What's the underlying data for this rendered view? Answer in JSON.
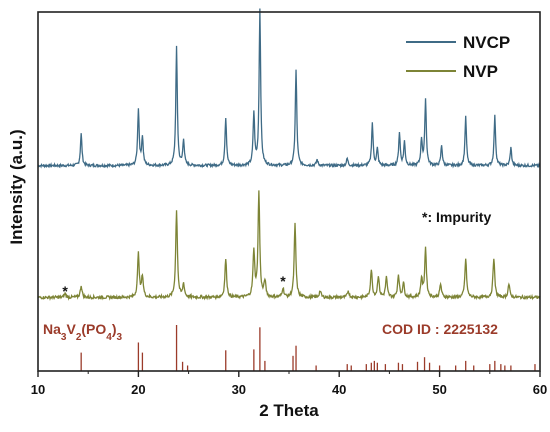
{
  "chart_data": {
    "type": "line",
    "title": "",
    "xlabel": "2 Theta",
    "ylabel": "Intensity (a.u.)",
    "xlim": [
      10,
      60
    ],
    "xticks": [
      10,
      20,
      30,
      40,
      50,
      60
    ],
    "grid": false,
    "legend_position": "top-right",
    "impurity_note": "*: Impurity",
    "impurity_marker": "*",
    "impurity_positions": [
      12.7,
      34.4
    ],
    "colors": {
      "NVCP": "#3f6b86",
      "NVP": "#7d8436",
      "reference": "#9b3b2a"
    },
    "series": [
      {
        "name": "NVCP",
        "color": "#3f6b86",
        "peaks": [
          {
            "x": 14.3,
            "y": 27
          },
          {
            "x": 20.0,
            "y": 48
          },
          {
            "x": 20.4,
            "y": 24
          },
          {
            "x": 23.8,
            "y": 100
          },
          {
            "x": 24.5,
            "y": 22
          },
          {
            "x": 28.7,
            "y": 41
          },
          {
            "x": 31.5,
            "y": 44
          },
          {
            "x": 32.1,
            "y": 132
          },
          {
            "x": 35.7,
            "y": 81
          },
          {
            "x": 37.8,
            "y": 5
          },
          {
            "x": 40.8,
            "y": 6
          },
          {
            "x": 43.3,
            "y": 36
          },
          {
            "x": 43.8,
            "y": 14
          },
          {
            "x": 46.0,
            "y": 28
          },
          {
            "x": 46.5,
            "y": 20
          },
          {
            "x": 48.2,
            "y": 22
          },
          {
            "x": 48.6,
            "y": 56
          },
          {
            "x": 50.2,
            "y": 17
          },
          {
            "x": 52.6,
            "y": 41
          },
          {
            "x": 55.5,
            "y": 42
          },
          {
            "x": 57.1,
            "y": 15
          }
        ]
      },
      {
        "name": "NVP",
        "color": "#7d8436",
        "peaks": [
          {
            "x": 12.7,
            "y": 3
          },
          {
            "x": 14.3,
            "y": 9
          },
          {
            "x": 20.0,
            "y": 33
          },
          {
            "x": 20.4,
            "y": 16
          },
          {
            "x": 23.8,
            "y": 66
          },
          {
            "x": 24.5,
            "y": 10
          },
          {
            "x": 28.7,
            "y": 29
          },
          {
            "x": 31.5,
            "y": 35
          },
          {
            "x": 32.0,
            "y": 79
          },
          {
            "x": 32.6,
            "y": 12
          },
          {
            "x": 34.4,
            "y": 7
          },
          {
            "x": 35.6,
            "y": 55
          },
          {
            "x": 38.1,
            "y": 5
          },
          {
            "x": 40.9,
            "y": 5
          },
          {
            "x": 43.2,
            "y": 21
          },
          {
            "x": 43.9,
            "y": 16
          },
          {
            "x": 44.7,
            "y": 15
          },
          {
            "x": 45.9,
            "y": 17
          },
          {
            "x": 46.4,
            "y": 11
          },
          {
            "x": 48.2,
            "y": 14
          },
          {
            "x": 48.6,
            "y": 37
          },
          {
            "x": 50.1,
            "y": 10
          },
          {
            "x": 52.6,
            "y": 29
          },
          {
            "x": 55.4,
            "y": 30
          },
          {
            "x": 56.9,
            "y": 10
          }
        ]
      }
    ],
    "reference": {
      "label_main": "Na",
      "label_parts": [
        {
          "t": "Na",
          "sub": false
        },
        {
          "t": "3",
          "sub": true
        },
        {
          "t": "V",
          "sub": false
        },
        {
          "t": "2",
          "sub": true
        },
        {
          "t": "(PO",
          "sub": false
        },
        {
          "t": "4",
          "sub": true
        },
        {
          "t": ")",
          "sub": false
        },
        {
          "t": "3",
          "sub": true
        }
      ],
      "cod_label": "COD ID : 2225132",
      "lines": [
        {
          "x": 14.3,
          "h": 40
        },
        {
          "x": 20.0,
          "h": 62
        },
        {
          "x": 20.4,
          "h": 40
        },
        {
          "x": 23.8,
          "h": 100
        },
        {
          "x": 24.4,
          "h": 20
        },
        {
          "x": 24.9,
          "h": 12
        },
        {
          "x": 28.7,
          "h": 45
        },
        {
          "x": 31.5,
          "h": 47
        },
        {
          "x": 32.1,
          "h": 95
        },
        {
          "x": 32.6,
          "h": 22
        },
        {
          "x": 35.4,
          "h": 33
        },
        {
          "x": 35.7,
          "h": 55
        },
        {
          "x": 37.7,
          "h": 12
        },
        {
          "x": 40.8,
          "h": 15
        },
        {
          "x": 41.2,
          "h": 12
        },
        {
          "x": 42.7,
          "h": 15
        },
        {
          "x": 43.2,
          "h": 18
        },
        {
          "x": 43.5,
          "h": 22
        },
        {
          "x": 43.8,
          "h": 18
        },
        {
          "x": 44.6,
          "h": 15
        },
        {
          "x": 45.9,
          "h": 18
        },
        {
          "x": 46.3,
          "h": 15
        },
        {
          "x": 47.8,
          "h": 20
        },
        {
          "x": 48.5,
          "h": 30
        },
        {
          "x": 49.0,
          "h": 18
        },
        {
          "x": 50.0,
          "h": 12
        },
        {
          "x": 51.6,
          "h": 12
        },
        {
          "x": 52.6,
          "h": 22
        },
        {
          "x": 53.4,
          "h": 12
        },
        {
          "x": 55.0,
          "h": 15
        },
        {
          "x": 55.5,
          "h": 22
        },
        {
          "x": 56.1,
          "h": 15
        },
        {
          "x": 56.5,
          "h": 12
        },
        {
          "x": 57.1,
          "h": 12
        },
        {
          "x": 59.5,
          "h": 15
        }
      ]
    }
  }
}
